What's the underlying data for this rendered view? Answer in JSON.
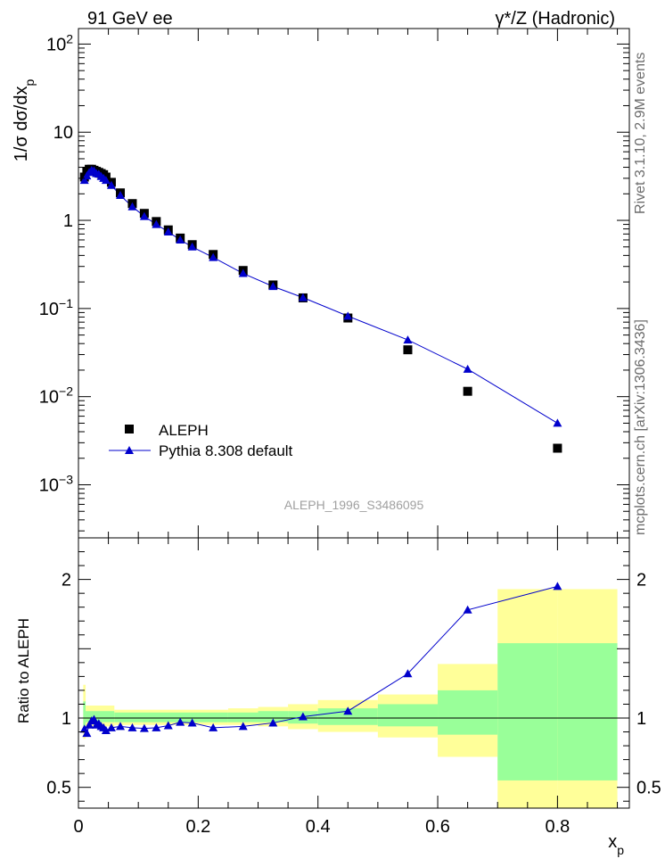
{
  "header": {
    "left": "91 GeV ee",
    "right": "γ*/Z (Hadronic)"
  },
  "side_labels": {
    "rivet": "Rivet 3.1.10,  2.9M events",
    "mcplots": "mcplots.cern.ch [arXiv:1306.3436]"
  },
  "watermark": "ALEPH_1996_S3486095",
  "chart_data": [
    {
      "type": "scatter",
      "panel": "main",
      "ylabel": "1/σ dσ/dx_p",
      "yscale": "log",
      "xlim": [
        0,
        0.92
      ],
      "ylim": [
        0.00025,
        150
      ],
      "y_ticks": [
        {
          "value": 0.001,
          "base": "10",
          "exp": "−3"
        },
        {
          "value": 0.01,
          "base": "10",
          "exp": "−2"
        },
        {
          "value": 0.1,
          "base": "10",
          "exp": "−1"
        },
        {
          "value": 1,
          "base": "1",
          "exp": ""
        },
        {
          "value": 10,
          "base": "10",
          "exp": ""
        },
        {
          "value": 100,
          "base": "10",
          "exp": "2"
        }
      ],
      "legend": {
        "placement": "lower-left",
        "entries": [
          "ALEPH",
          "Pythia 8.308 default"
        ]
      },
      "series": [
        {
          "name": "ALEPH",
          "marker": "square",
          "color": "#000000",
          "x": [
            0.01,
            0.014,
            0.018,
            0.022,
            0.026,
            0.03,
            0.034,
            0.038,
            0.042,
            0.046,
            0.055,
            0.07,
            0.09,
            0.11,
            0.13,
            0.15,
            0.17,
            0.19,
            0.225,
            0.275,
            0.325,
            0.375,
            0.45,
            0.55,
            0.65,
            0.8
          ],
          "y": [
            3.1,
            3.6,
            3.8,
            3.8,
            3.7,
            3.6,
            3.5,
            3.4,
            3.3,
            3.1,
            2.7,
            2.05,
            1.55,
            1.2,
            0.97,
            0.78,
            0.63,
            0.53,
            0.41,
            0.27,
            0.185,
            0.132,
            0.078,
            0.034,
            0.0115,
            0.0026
          ]
        },
        {
          "name": "Pythia 8.308 default",
          "marker": "triangle",
          "color": "#0000cc",
          "x": [
            0.01,
            0.014,
            0.018,
            0.022,
            0.026,
            0.03,
            0.034,
            0.038,
            0.042,
            0.046,
            0.055,
            0.07,
            0.09,
            0.11,
            0.13,
            0.15,
            0.17,
            0.19,
            0.225,
            0.275,
            0.325,
            0.375,
            0.45,
            0.55,
            0.65,
            0.8
          ],
          "y": [
            2.85,
            3.2,
            3.5,
            3.7,
            3.65,
            3.4,
            3.35,
            3.15,
            3.0,
            2.85,
            2.5,
            1.92,
            1.43,
            1.11,
            0.9,
            0.74,
            0.6,
            0.5,
            0.38,
            0.25,
            0.178,
            0.133,
            0.082,
            0.044,
            0.0205,
            0.005
          ]
        }
      ]
    },
    {
      "type": "line",
      "panel": "ratio",
      "ylabel": "Ratio to ALEPH",
      "xlabel": "x_p",
      "xlim": [
        0,
        0.92
      ],
      "ylim": [
        0.35,
        2.3
      ],
      "x_ticks": [
        0,
        0.2,
        0.4,
        0.6,
        0.8
      ],
      "x_tick_labels": [
        "0",
        "0.2",
        "0.4",
        "0.6",
        "0.8"
      ],
      "y_ticks": [
        0.5,
        1,
        2
      ],
      "y_tick_labels": [
        "0.5",
        "1",
        "2"
      ],
      "bands": [
        {
          "x0": 0.008,
          "x1": 0.012,
          "yellow": [
            0.85,
            1.24
          ],
          "green": [
            0.92,
            1.12
          ]
        },
        {
          "x0": 0.012,
          "x1": 0.06,
          "yellow": [
            0.94,
            1.09
          ],
          "green": [
            0.97,
            1.05
          ]
        },
        {
          "x0": 0.06,
          "x1": 0.25,
          "yellow": [
            0.95,
            1.06
          ],
          "green": [
            0.97,
            1.04
          ]
        },
        {
          "x0": 0.25,
          "x1": 0.3,
          "yellow": [
            0.95,
            1.07
          ],
          "green": [
            0.97,
            1.04
          ]
        },
        {
          "x0": 0.3,
          "x1": 0.35,
          "yellow": [
            0.94,
            1.08
          ],
          "green": [
            0.97,
            1.05
          ]
        },
        {
          "x0": 0.35,
          "x1": 0.4,
          "yellow": [
            0.92,
            1.1
          ],
          "green": [
            0.96,
            1.05
          ]
        },
        {
          "x0": 0.4,
          "x1": 0.5,
          "yellow": [
            0.9,
            1.13
          ],
          "green": [
            0.95,
            1.07
          ]
        },
        {
          "x0": 0.5,
          "x1": 0.6,
          "yellow": [
            0.86,
            1.17
          ],
          "green": [
            0.94,
            1.1
          ]
        },
        {
          "x0": 0.6,
          "x1": 0.7,
          "yellow": [
            0.72,
            1.39
          ],
          "green": [
            0.88,
            1.2
          ]
        },
        {
          "x0": 0.7,
          "x1": 0.8,
          "yellow": [
            0.35,
            1.93
          ],
          "green": [
            0.55,
            1.54
          ]
        },
        {
          "x0": 0.8,
          "x1": 0.9,
          "yellow": [
            0.35,
            1.93
          ],
          "green": [
            0.55,
            1.54
          ]
        }
      ],
      "series": [
        {
          "name": "Pythia 8.308 default",
          "marker": "triangle",
          "color": "#0000cc",
          "x": [
            0.01,
            0.014,
            0.018,
            0.022,
            0.026,
            0.03,
            0.034,
            0.038,
            0.042,
            0.046,
            0.055,
            0.07,
            0.09,
            0.11,
            0.13,
            0.15,
            0.17,
            0.19,
            0.225,
            0.275,
            0.325,
            0.375,
            0.45,
            0.55,
            0.65,
            0.8
          ],
          "y": [
            0.92,
            0.89,
            0.95,
            0.98,
            0.99,
            0.95,
            0.96,
            0.94,
            0.93,
            0.91,
            0.93,
            0.94,
            0.93,
            0.925,
            0.93,
            0.945,
            0.97,
            0.965,
            0.93,
            0.94,
            0.965,
            1.01,
            1.05,
            1.32,
            1.78,
            1.95
          ]
        }
      ]
    }
  ],
  "colors": {
    "yellow_band": "#ffff99",
    "green_band": "#99ff99",
    "mc": "#0000cc",
    "data": "#000000"
  }
}
